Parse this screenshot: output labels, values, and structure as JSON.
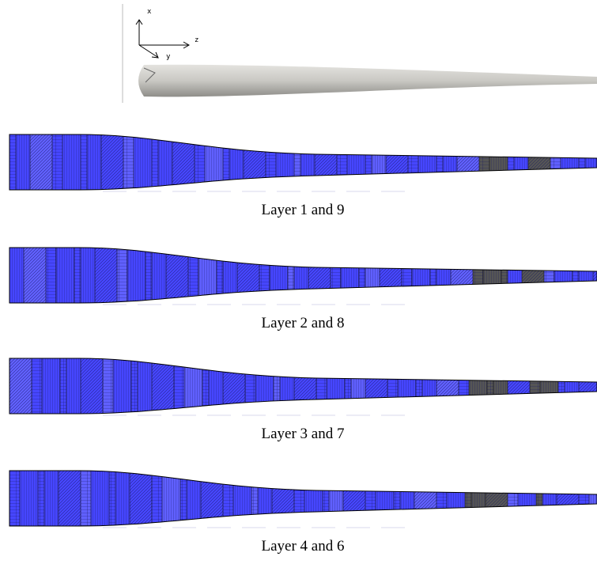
{
  "axes": {
    "x": "x",
    "y": "y",
    "z": "z"
  },
  "layers": [
    {
      "caption": "Layer 1 and 9"
    },
    {
      "caption": "Layer 2 and 8"
    },
    {
      "caption": "Layer 3 and 7"
    },
    {
      "caption": "Layer 4 and 6"
    }
  ]
}
